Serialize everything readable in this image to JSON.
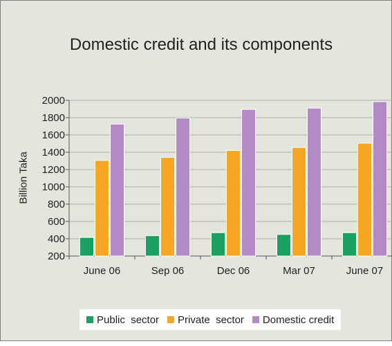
{
  "chart_data": {
    "type": "bar",
    "title": "Domestic credit and its components",
    "xlabel": "",
    "ylabel": "Billion Taka",
    "ylim": [
      200,
      2000
    ],
    "yticks": [
      200,
      400,
      600,
      800,
      1000,
      1200,
      1400,
      1600,
      1800,
      2000
    ],
    "grid": true,
    "legend_position": "bottom",
    "categories": [
      "June 06",
      "Sep 06",
      "Dec 06",
      "Mar 07",
      "June 07"
    ],
    "series": [
      {
        "name": "Public  sector",
        "color": "#1aa060",
        "values": [
          415,
          435,
          470,
          450,
          470
        ]
      },
      {
        "name": "Private  sector",
        "color": "#f5a623",
        "values": [
          1305,
          1340,
          1420,
          1455,
          1505
        ]
      },
      {
        "name": "Domestic credit",
        "color": "#b389c6",
        "values": [
          1725,
          1795,
          1895,
          1910,
          1985
        ]
      }
    ]
  }
}
